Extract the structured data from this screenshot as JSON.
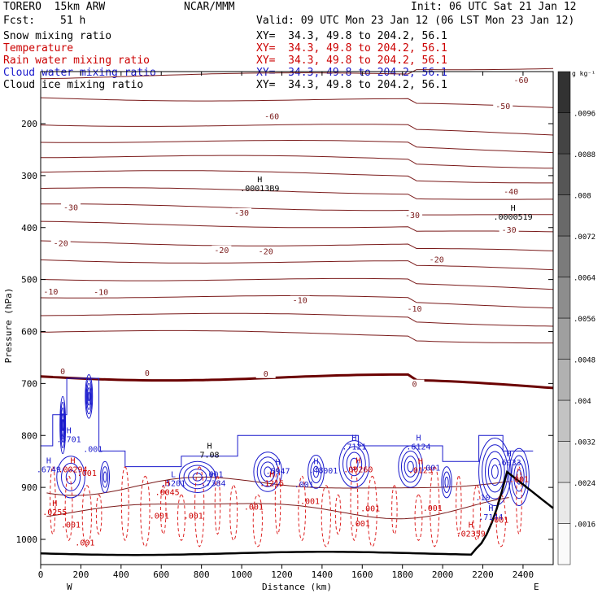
{
  "header": {
    "model": "TORERO  15km ARW",
    "center": "NCAR/MMM",
    "init": "Init: 06 UTC Sat 21 Jan 12",
    "fcst_label": "Fcst:",
    "fcst_value": "51 h",
    "valid": "Valid: 09 UTC Mon 23 Jan 12 (06 LST Mon 23 Jan 12)"
  },
  "fields": [
    {
      "name": "Snow mixing ratio",
      "xy": "XY=  34.3, 49.8 to 204.2, 56.1",
      "color": "#000000"
    },
    {
      "name": "Temperature",
      "xy": "XY=  34.3, 49.8 to 204.2, 56.1",
      "color": "#cc0000"
    },
    {
      "name": "Rain water mixing ratio",
      "xy": "XY=  34.3, 49.8 to 204.2, 56.1",
      "color": "#cc0000"
    },
    {
      "name": "Cloud water mixing ratio",
      "xy": "XY=  34.3, 49.8 to 204.2, 56.1",
      "color": "#1a1acc"
    },
    {
      "name": "Cloud ice mixing ratio",
      "xy": "XY=  34.3, 49.8 to 204.2, 56.1",
      "color": "#000000"
    }
  ],
  "axis_labels": {
    "ylabel": "Pressure (hPa)",
    "xlabel": "Distance (km)",
    "west": "W",
    "east": "E",
    "colorbar_unit": "g kg⁻¹"
  },
  "colors": {
    "temperature": "#7a1a1a",
    "zero_isotherm": "#6b0000",
    "rain": "#dd2222",
    "cloud_water": "#1a1acc",
    "terrain": "#000000"
  },
  "chart_data": {
    "type": "cross-section",
    "x_ticks": [
      0,
      200,
      400,
      600,
      800,
      1000,
      1200,
      1400,
      1600,
      1800,
      2000,
      2200,
      2400
    ],
    "y_ticks": [
      200,
      300,
      400,
      500,
      600,
      700,
      800,
      900,
      1000
    ],
    "xlim": [
      0,
      2550
    ],
    "ylim_hpa": [
      100,
      1030
    ],
    "colorbar_ticks": [
      ".0016",
      ".0024",
      ".0032",
      ".004",
      ".0048",
      ".0056",
      ".0064",
      ".0072",
      ".008",
      ".0088",
      ".0096"
    ],
    "temperature_contour_labels": [
      {
        "text": "-60",
        "x": 2390,
        "p": 120
      },
      {
        "text": "-60",
        "x": 1150,
        "p": 190
      },
      {
        "text": "-50",
        "x": 2300,
        "p": 170
      },
      {
        "text": "-40",
        "x": 2340,
        "p": 335
      },
      {
        "text": "-30",
        "x": 150,
        "p": 365
      },
      {
        "text": "-30",
        "x": 1000,
        "p": 375
      },
      {
        "text": "-30",
        "x": 1850,
        "p": 380
      },
      {
        "text": "-30",
        "x": 2330,
        "p": 408
      },
      {
        "text": "-20",
        "x": 100,
        "p": 434
      },
      {
        "text": "-20",
        "x": 900,
        "p": 447
      },
      {
        "text": "-20",
        "x": 1120,
        "p": 450
      },
      {
        "text": "-20",
        "x": 1970,
        "p": 465
      },
      {
        "text": "-10",
        "x": 50,
        "p": 527
      },
      {
        "text": "-10",
        "x": 300,
        "p": 528
      },
      {
        "text": "-10",
        "x": 1290,
        "p": 544
      },
      {
        "text": "-10",
        "x": 1860,
        "p": 560
      },
      {
        "text": "0",
        "x": 110,
        "p": 681
      },
      {
        "text": "0",
        "x": 530,
        "p": 684
      },
      {
        "text": "0",
        "x": 1120,
        "p": 685
      },
      {
        "text": "0",
        "x": 1860,
        "p": 705
      }
    ],
    "extrema_labels": [
      {
        "mark": "H",
        "value": ".00013B9",
        "x": 1090,
        "p": 325
      },
      {
        "mark": "H",
        "value": ".0000519",
        "x": 2350,
        "p": 380
      },
      {
        "mark": "H",
        "value": "7.08",
        "x": 840,
        "p": 838
      },
      {
        "mark": "H",
        "value": ".7121",
        "x": 1560,
        "p": 822
      },
      {
        "mark": "H",
        "value": ".6124",
        "x": 1880,
        "p": 822
      },
      {
        "mark": "H",
        "value": ".6933",
        "x": 2330,
        "p": 853
      },
      {
        "mark": "H",
        "value": ".7384",
        "x": 860,
        "p": 893
      },
      {
        "mark": "H",
        "value": ".5947",
        "x": 1180,
        "p": 869
      },
      {
        "mark": "H",
        "value": ".48",
        "x": 1370,
        "p": 868
      },
      {
        "mark": "H",
        "value": ".5701",
        "x": 140,
        "p": 808
      },
      {
        "mark": "H",
        "value": ".6749",
        "x": 40,
        "p": 866
      },
      {
        "mark": "H",
        "value": ".00294",
        "x": 160,
        "p": 866
      },
      {
        "mark": "H",
        "value": ".0255",
        "x": 70,
        "p": 948
      },
      {
        "mark": "H",
        "value": ".00260",
        "x": 1580,
        "p": 866
      },
      {
        "mark": "H",
        "value": ".0123",
        "x": 1890,
        "p": 868
      },
      {
        "mark": "H",
        "value": ".1215",
        "x": 1150,
        "p": 893
      },
      {
        "mark": "H",
        "value": ".7144",
        "x": 2240,
        "p": 958
      },
      {
        "mark": "H",
        "value": ".02359",
        "x": 2140,
        "p": 990
      },
      {
        "mark": "L",
        "value": ".5201",
        "x": 660,
        "p": 893
      },
      {
        "mark": "H",
        "value": ".0045",
        "x": 630,
        "p": 910
      }
    ],
    "mixing_ratio_labels": [
      {
        "text": ".001",
        "x": 260,
        "p": 832,
        "color": "#1a1acc"
      },
      {
        "text": ".001",
        "x": 860,
        "p": 880,
        "color": "#1a1acc"
      },
      {
        "text": ".001",
        "x": 230,
        "p": 878,
        "color": "#cc0000"
      },
      {
        "text": ".001",
        "x": 1060,
        "p": 943,
        "color": "#cc0000"
      },
      {
        "text": ".001",
        "x": 1340,
        "p": 932,
        "color": "#cc0000"
      },
      {
        "text": ".001",
        "x": 1640,
        "p": 946,
        "color": "#cc0000"
      },
      {
        "text": ".001",
        "x": 1950,
        "p": 945,
        "color": "#cc0000"
      },
      {
        "text": ".001",
        "x": 2280,
        "p": 968,
        "color": "#cc0000"
      },
      {
        "text": ".001",
        "x": 2380,
        "p": 890,
        "color": "#cc0000"
      },
      {
        "text": ".001",
        "x": 760,
        "p": 960,
        "color": "#cc0000"
      },
      {
        "text": ".001",
        "x": 150,
        "p": 977,
        "color": "#cc0000"
      },
      {
        "text": ".001",
        "x": 220,
        "p": 1012,
        "color": "#cc0000"
      },
      {
        "text": ".001",
        "x": 590,
        "p": 960,
        "color": "#cc0000"
      },
      {
        "text": ".001",
        "x": 1590,
        "p": 975,
        "color": "#cc0000"
      },
      {
        "text": ".001",
        "x": 1430,
        "p": 873,
        "color": "#1a1acc"
      },
      {
        "text": ".001",
        "x": 1310,
        "p": 900,
        "color": "#1a1acc"
      },
      {
        "text": ".001",
        "x": 1940,
        "p": 868,
        "color": "#1a1acc"
      },
      {
        "text": ".10",
        "x": 2200,
        "p": 925,
        "color": "#1a1acc"
      }
    ]
  }
}
